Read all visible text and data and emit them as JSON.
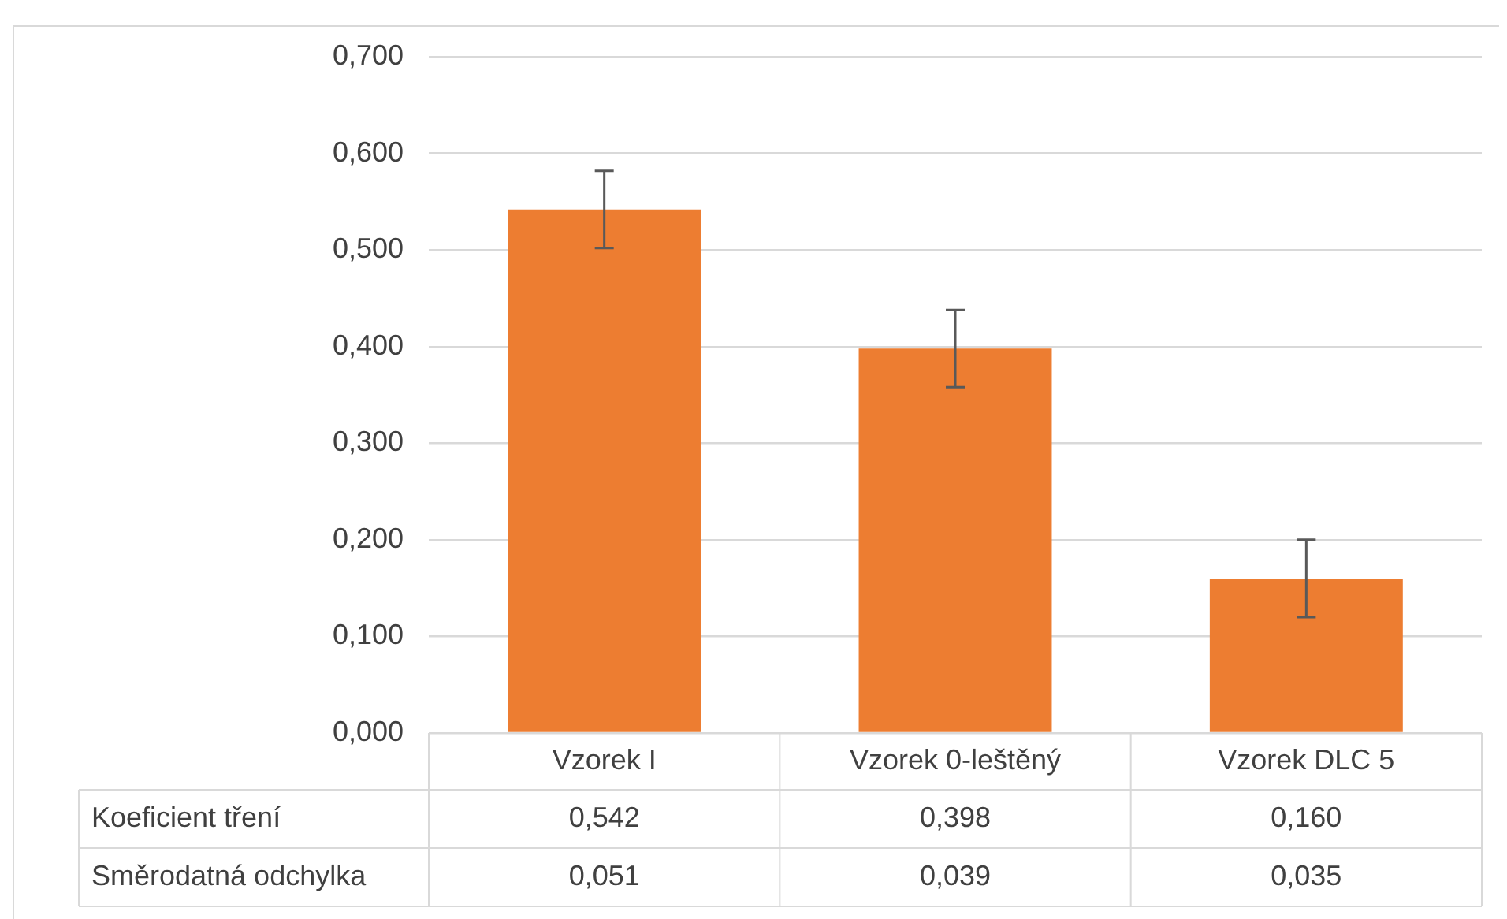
{
  "chart_data": {
    "type": "bar",
    "categories": [
      "Vzorek I",
      "Vzorek 0-leštěný",
      "Vzorek DLC 5"
    ],
    "series": [
      {
        "name": "Koeficient tření",
        "color": "#ed7d31",
        "values": [
          0.542,
          0.398,
          0.16
        ],
        "errors": [
          0.04,
          0.04,
          0.04
        ],
        "value_labels": [
          "0,542",
          "0,398",
          "0,160"
        ]
      }
    ],
    "annotations": [
      "Směrodatná odchylka",
      "0,051",
      "0,039",
      "0,035"
    ],
    "ylim": [
      0,
      0.7
    ],
    "yticks": [
      {
        "value": 0,
        "label": "0,000"
      },
      {
        "value": 0.1,
        "label": "0,100"
      },
      {
        "value": 0.2,
        "label": "0,200"
      },
      {
        "value": 0.3,
        "label": "0,300"
      },
      {
        "value": 0.4,
        "label": "0,400"
      },
      {
        "value": 0.5,
        "label": "0,500"
      },
      {
        "value": 0.6,
        "label": "0,600"
      },
      {
        "value": 0.7,
        "label": "0,700"
      }
    ],
    "grid": "y",
    "legend": false
  }
}
